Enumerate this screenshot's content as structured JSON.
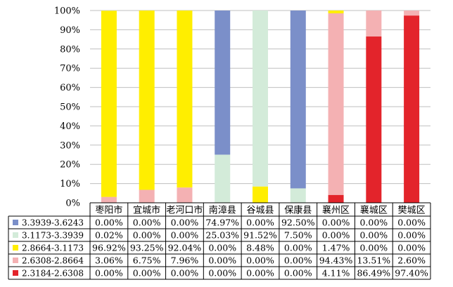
{
  "chart_data": {
    "type": "bar",
    "stacked": true,
    "percent": true,
    "categories": [
      "枣阳市",
      "宜城市",
      "老河口市",
      "南漳县",
      "谷城县",
      "保康县",
      "襄州区",
      "襄城区",
      "樊城区"
    ],
    "yticks": [
      "0%",
      "10%",
      "20%",
      "30%",
      "40%",
      "50%",
      "60%",
      "70%",
      "80%",
      "90%",
      "100%"
    ],
    "ylim": [
      0,
      100
    ],
    "grid": true,
    "legend_placement": "table-bottom",
    "series": [
      {
        "name": "3.3939-3.6243",
        "color": "#7b8fc9",
        "values": [
          0.0,
          0.0,
          0.0,
          74.97,
          0.0,
          92.5,
          0.0,
          0.0,
          0.0
        ],
        "labels": [
          "0.00%",
          "0.00%",
          "0.00%",
          "74.97%",
          "0.00%",
          "92.50%",
          "0.00%",
          "0.00%",
          "0.00%"
        ]
      },
      {
        "name": "3.1173-3.3939",
        "color": "#d3ebd9",
        "values": [
          0.02,
          0.0,
          0.0,
          25.03,
          91.52,
          7.5,
          0.0,
          0.0,
          0.0
        ],
        "labels": [
          "0.02%",
          "0.00%",
          "0.00%",
          "25.03%",
          "91.52%",
          "7.50%",
          "0.00%",
          "0.00%",
          "0.00%"
        ]
      },
      {
        "name": "2.8664-3.1173",
        "color": "#ffee00",
        "values": [
          96.92,
          93.25,
          92.04,
          0.0,
          8.48,
          0.0,
          1.47,
          0.0,
          0.0
        ],
        "labels": [
          "96.92%",
          "93.25%",
          "92.04%",
          "0.00%",
          "8.48%",
          "0.00%",
          "1.47%",
          "0.00%",
          "0.00%"
        ]
      },
      {
        "name": "2.6308-2.8664",
        "color": "#f4b1b3",
        "values": [
          3.06,
          6.75,
          7.96,
          0.0,
          0.0,
          0.0,
          94.43,
          13.51,
          2.6
        ],
        "labels": [
          "3.06%",
          "6.75%",
          "7.96%",
          "0.00%",
          "0.00%",
          "0.00%",
          "94.43%",
          "13.51%",
          "2.60%"
        ]
      },
      {
        "name": "2.3184-2.6308",
        "color": "#e3242b",
        "values": [
          0.0,
          0.0,
          0.0,
          0.0,
          0.0,
          0.0,
          4.11,
          86.49,
          97.4
        ],
        "labels": [
          "0.00%",
          "0.00%",
          "0.00%",
          "0.00%",
          "0.00%",
          "0.00%",
          "4.11%",
          "86.49%",
          "97.40%"
        ]
      }
    ]
  }
}
